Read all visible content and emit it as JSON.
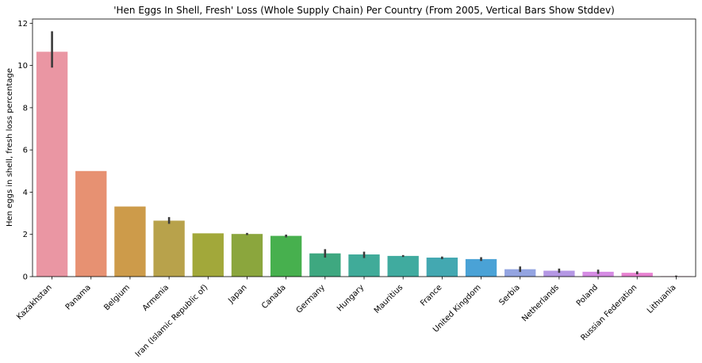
{
  "chart_data": {
    "type": "bar",
    "title": "'Hen Eggs In Shell, Fresh' Loss (Whole Supply Chain) Per Country (From 2005, Vertical Bars Show Stddev)",
    "xlabel": "",
    "ylabel": "Hen eggs in shell, fresh loss percentage",
    "ylim": [
      0,
      12.2
    ],
    "yticks": [
      0,
      2,
      4,
      6,
      8,
      10,
      12
    ],
    "grid": false,
    "legend": "none",
    "categories": [
      "Kazakhstan",
      "Panama",
      "Belgium",
      "Armenia",
      "Iran (Islamic Republic of)",
      "Japan",
      "Canada",
      "Germany",
      "Hungary",
      "Mauritius",
      "France",
      "United Kingdom",
      "Serbia",
      "Netherlands",
      "Poland",
      "Russian Federation",
      "Lithuania"
    ],
    "values": [
      10.65,
      5.0,
      3.32,
      2.65,
      2.05,
      2.02,
      1.93,
      1.1,
      1.05,
      0.98,
      0.9,
      0.83,
      0.35,
      0.28,
      0.23,
      0.18,
      0.02
    ],
    "error_low": [
      9.9,
      5.0,
      3.32,
      2.5,
      2.05,
      1.97,
      1.86,
      0.9,
      0.88,
      0.93,
      0.83,
      0.74,
      0.22,
      0.18,
      0.13,
      0.11,
      0.0
    ],
    "error_high": [
      11.62,
      5.0,
      3.32,
      2.82,
      2.05,
      2.07,
      1.99,
      1.3,
      1.18,
      1.02,
      0.95,
      0.92,
      0.48,
      0.38,
      0.33,
      0.25,
      0.05
    ],
    "colors": [
      "#ea96a3",
      "#e79172",
      "#cd9b4a",
      "#b8a24b",
      "#a2a83a",
      "#8ba63d",
      "#47b04e",
      "#3ea880",
      "#40ab99",
      "#40ab9f",
      "#43a8b1",
      "#4aa2d6",
      "#93a4e1",
      "#b497e4",
      "#d58be3",
      "#e780d0",
      "#e993b4"
    ]
  }
}
